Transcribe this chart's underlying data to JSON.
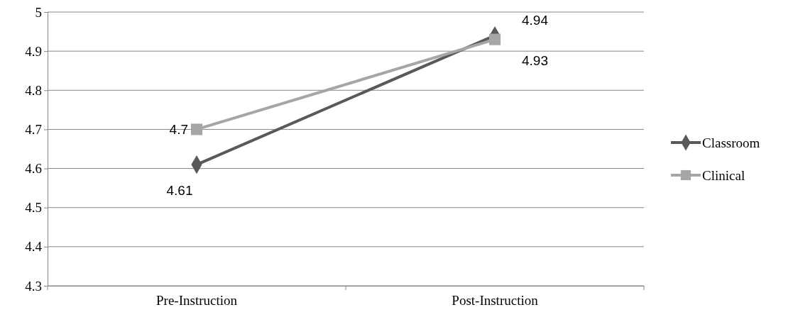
{
  "chart_data": {
    "type": "line",
    "categories": [
      "Pre-Instruction",
      "Post-Instruction"
    ],
    "series": [
      {
        "name": "Classroom",
        "color": "#595959",
        "marker": "diamond",
        "values": [
          4.61,
          4.94
        ]
      },
      {
        "name": "Clinical",
        "color": "#a6a6a6",
        "marker": "square",
        "values": [
          4.7,
          4.93
        ]
      }
    ],
    "ylim": [
      4.3,
      5
    ],
    "yticks": [
      4.3,
      4.4,
      4.5,
      4.6,
      4.7,
      4.8,
      4.9,
      5
    ],
    "grid": "y",
    "legend": "right",
    "data_labels": true
  }
}
